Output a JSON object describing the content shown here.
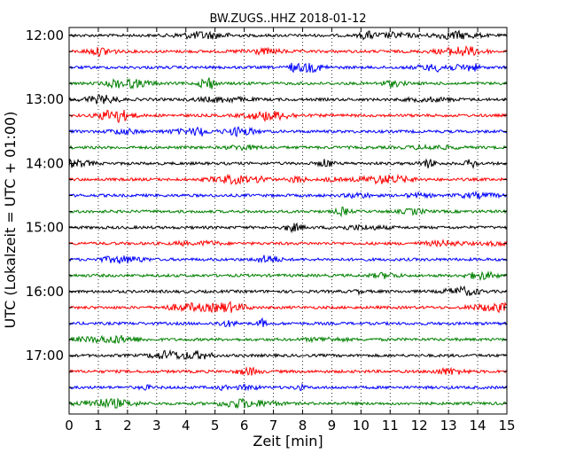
{
  "chart_data": {
    "type": "line",
    "title": "BW.ZUGS..HHZ 2018-01-12",
    "xlabel": "Zeit  [min]",
    "ylabel": "UTC (Lokalzeit = UTC + 01:00)",
    "xlim": [
      0,
      15
    ],
    "x_ticks": [
      "0",
      "1",
      "2",
      "3",
      "4",
      "5",
      "6",
      "7",
      "8",
      "9",
      "10",
      "11",
      "12",
      "13",
      "14",
      "15"
    ],
    "y_ticks": [
      "12:00",
      "13:00",
      "14:00",
      "15:00",
      "16:00",
      "17:00"
    ],
    "grid": "vertical dotted",
    "trace_colors": [
      "#000000",
      "#ff0000",
      "#0000ff",
      "#008000"
    ],
    "traces": [
      {
        "start": "12:00"
      },
      {
        "start": "12:15"
      },
      {
        "start": "12:30"
      },
      {
        "start": "12:45"
      },
      {
        "start": "13:00"
      },
      {
        "start": "13:15"
      },
      {
        "start": "13:30"
      },
      {
        "start": "13:45"
      },
      {
        "start": "14:00"
      },
      {
        "start": "14:15"
      },
      {
        "start": "14:30"
      },
      {
        "start": "14:45"
      },
      {
        "start": "15:00"
      },
      {
        "start": "15:15"
      },
      {
        "start": "15:30"
      },
      {
        "start": "15:45"
      },
      {
        "start": "16:00"
      },
      {
        "start": "16:15"
      },
      {
        "start": "16:30"
      },
      {
        "start": "16:45"
      },
      {
        "start": "17:00"
      },
      {
        "start": "17:15"
      },
      {
        "start": "17:30"
      },
      {
        "start": "17:45"
      }
    ]
  }
}
